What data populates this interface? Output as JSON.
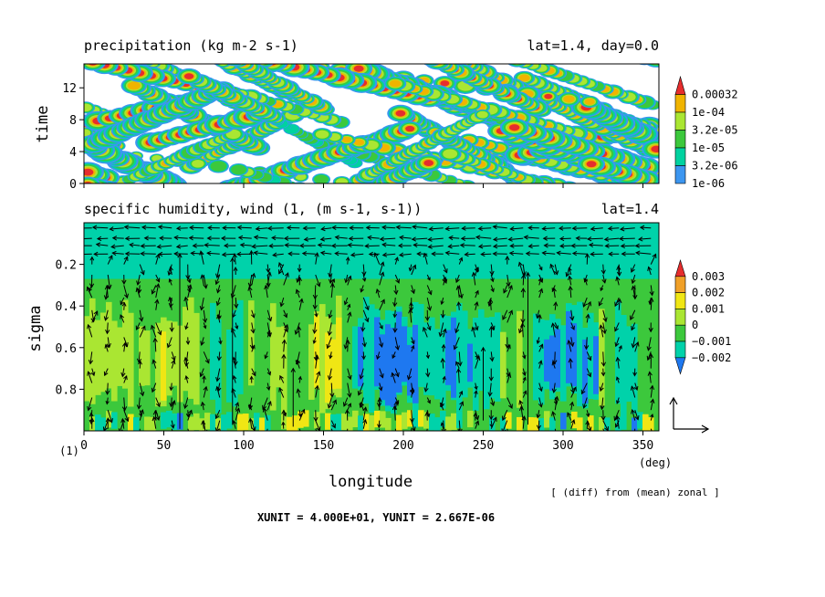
{
  "chart_data": [
    {
      "type": "heatmap",
      "title": "precipitation (kg m-2 s-1)",
      "title_right": "lat=1.4, day=0.0",
      "ylabel": "time",
      "xlim": [
        0,
        360
      ],
      "ylim": [
        0,
        15
      ],
      "yticks": [
        0,
        4,
        8,
        12
      ],
      "legend": {
        "placement": "right",
        "levels": [
          "1e-06",
          "3.2e-06",
          "1e-05",
          "3.2e-05",
          "1e-04",
          "0.00032"
        ],
        "colors": [
          "#3c96f0",
          "#00d2a0",
          "#3cc83c",
          "#aae632",
          "#f0b400",
          "#e62d2d"
        ]
      }
    },
    {
      "type": "heatmap",
      "subtype": "contour-with-vectors",
      "title": "specific humidity, wind (1, (m s-1, s-1))",
      "title_right": "lat=1.4",
      "xlabel": "longitude",
      "ylabel": "sigma",
      "xlim": [
        0,
        360
      ],
      "ylim": [
        1.0,
        0.0
      ],
      "xticks": [
        0,
        50,
        100,
        150,
        200,
        250,
        300,
        350
      ],
      "yticks": [
        0.2,
        0.4,
        0.6,
        0.8
      ],
      "x_unit": "(deg)",
      "legend": {
        "placement": "right",
        "levels": [
          "−0.002",
          "−0.001",
          "0",
          "0.001",
          "0.002",
          "0.003"
        ],
        "colors": [
          "#1e78f0",
          "#00d2aa",
          "#3cc83c",
          "#aae632",
          "#f0e614",
          "#f0a028",
          "#e62d2d"
        ]
      },
      "vector_units": {
        "xunit": 40.0,
        "yunit": 2.667e-06
      }
    }
  ],
  "labels": {
    "frame_number": "(1)",
    "x_unit": "(deg)",
    "diff_note": "[ (diff) from (mean) zonal ]",
    "unit_line": "XUNIT = 4.000E+01, YUNIT = 2.667E-06"
  },
  "colors": {
    "precip_bg": "#ffffff",
    "humidity_bg": "#3cc83c",
    "arrow": "#000000"
  }
}
